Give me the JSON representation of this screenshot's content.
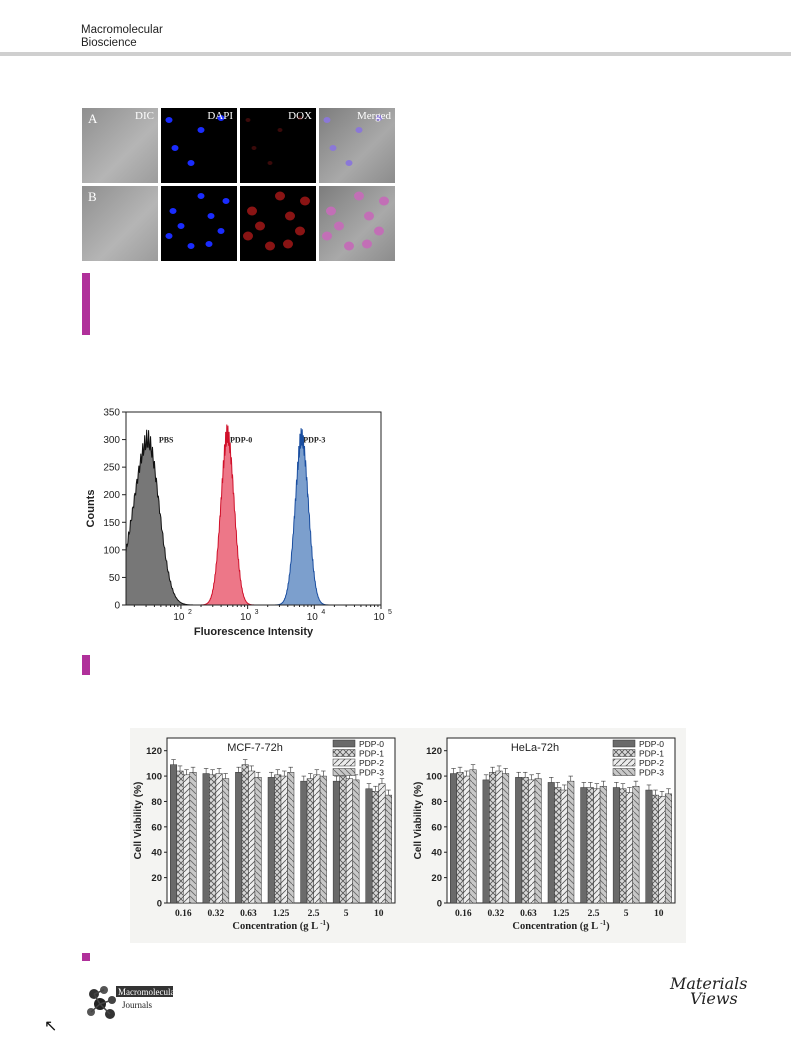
{
  "header": {
    "journal_line1": "Macromolecular",
    "journal_line2": "Bioscience"
  },
  "microscopy": {
    "columns": [
      "DIC",
      "DAPI",
      "DOX",
      "Merged"
    ],
    "rows": [
      "A",
      "B"
    ]
  },
  "flow_chart": {
    "ylabel": "Counts",
    "xlabel": "Fluorescence Intensity",
    "yticks": [
      "0",
      "50",
      "100",
      "150",
      "200",
      "250",
      "300",
      "350"
    ],
    "xticks": [
      "10",
      "10",
      "10",
      "10"
    ],
    "xexp": [
      "2",
      "3",
      "4",
      "5"
    ],
    "labels": [
      "PBS",
      "PDP-0",
      "PDP-3"
    ]
  },
  "viability": {
    "ylabel": "Cell Viability (%)",
    "xlabel_main": "Concentration (g L",
    "xlabel_sup": "-1",
    "xlabel_end": ")",
    "yticks": [
      "0",
      "20",
      "40",
      "60",
      "80",
      "100",
      "120"
    ],
    "categories": [
      "0.16",
      "0.32",
      "0.63",
      "1.25",
      "2.5",
      "5",
      "10"
    ],
    "legend": [
      "PDP-0",
      "PDP-1",
      "PDP-2",
      "PDP-3"
    ]
  },
  "footer": {
    "logo_line1": "Macromolecular",
    "logo_line2": "Journals",
    "mv_line1": "Materials",
    "mv_line2": "Views",
    "arrow": "↖"
  },
  "chart_data": [
    {
      "type": "area",
      "title": "",
      "xlabel": "Fluorescence Intensity",
      "ylabel": "Counts",
      "xscale": "log",
      "xlim": [
        15,
        100000
      ],
      "ylim": [
        0,
        350
      ],
      "series": [
        {
          "name": "PBS",
          "color": "#555555",
          "peak_x": 32,
          "peak_y": 320,
          "width_decades": 0.17
        },
        {
          "name": "PDP-0",
          "color": "#e8556a",
          "peak_x": 500,
          "peak_y": 330,
          "width_decades": 0.1
        },
        {
          "name": "PDP-3",
          "color": "#5b87c0",
          "peak_x": 6500,
          "peak_y": 325,
          "width_decades": 0.1
        }
      ]
    },
    {
      "type": "bar",
      "title": "MCF-7-72h",
      "xlabel": "Concentration (g L-1)",
      "ylabel": "Cell Viability (%)",
      "ylim": [
        0,
        130
      ],
      "categories": [
        "0.16",
        "0.32",
        "0.63",
        "1.25",
        "2.5",
        "5",
        "10"
      ],
      "series": [
        {
          "name": "PDP-0",
          "values": [
            109,
            102,
            103,
            99,
            96,
            96,
            90
          ]
        },
        {
          "name": "PDP-1",
          "values": [
            104,
            101,
            109,
            101,
            98,
            100,
            88
          ]
        },
        {
          "name": "PDP-2",
          "values": [
            101,
            102,
            104,
            100,
            101,
            98,
            94
          ]
        },
        {
          "name": "PDP-3",
          "values": [
            103,
            98,
            99,
            103,
            100,
            97,
            85
          ]
        }
      ]
    },
    {
      "type": "bar",
      "title": "HeLa-72h",
      "xlabel": "Concentration (g L-1)",
      "ylabel": "Cell Viability (%)",
      "ylim": [
        0,
        130
      ],
      "categories": [
        "0.16",
        "0.32",
        "0.63",
        "1.25",
        "2.5",
        "5",
        "10"
      ],
      "series": [
        {
          "name": "PDP-0",
          "values": [
            102,
            97,
            99,
            95,
            91,
            91,
            89
          ]
        },
        {
          "name": "PDP-1",
          "values": [
            103,
            103,
            99,
            91,
            91,
            90,
            85
          ]
        },
        {
          "name": "PDP-2",
          "values": [
            100,
            104,
            97,
            89,
            90,
            87,
            84
          ]
        },
        {
          "name": "PDP-3",
          "values": [
            105,
            102,
            98,
            96,
            92,
            92,
            86
          ]
        }
      ]
    }
  ]
}
